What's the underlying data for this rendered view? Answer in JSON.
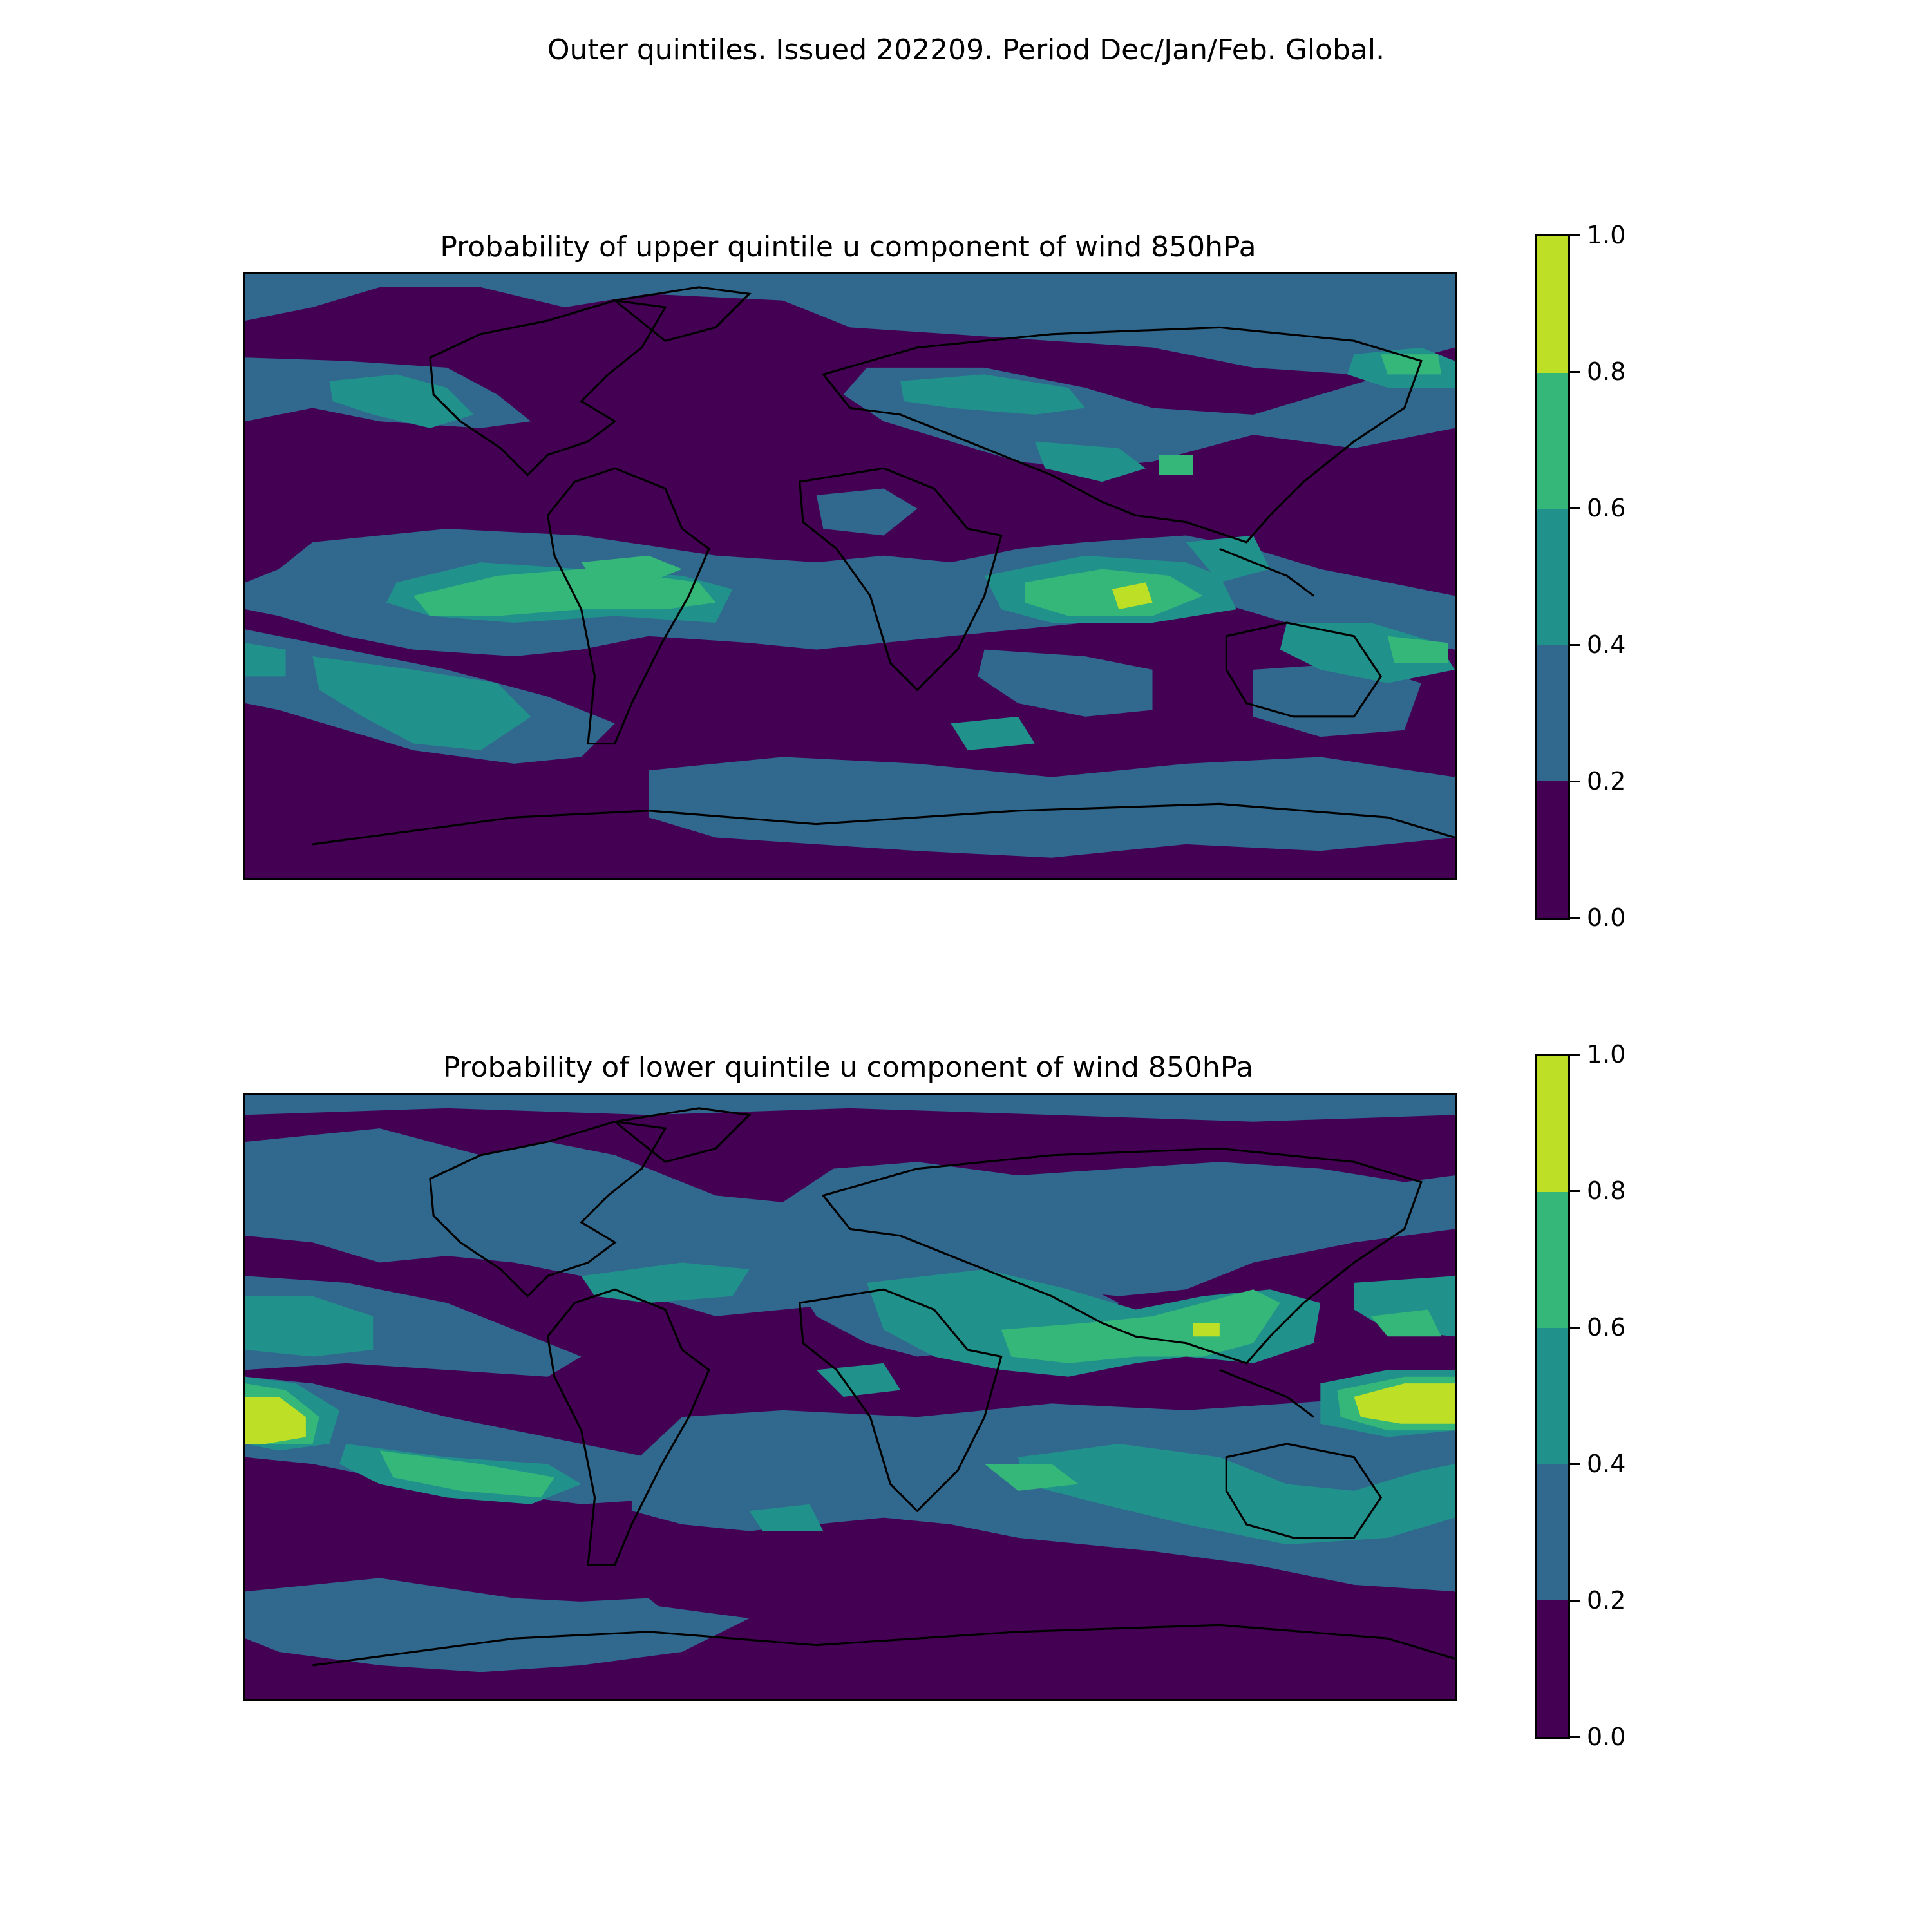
{
  "suptitle": "Outer quintiles. Issued 202209. Period Dec/Jan/Feb. Global.",
  "colors": {
    "levels": [
      "#440154",
      "#31688e",
      "#21918c",
      "#35b779",
      "#bddf26"
    ],
    "coastline": "#000000"
  },
  "colorbar": {
    "bounds": [
      0.0,
      0.2,
      0.4,
      0.6,
      0.8,
      1.0
    ],
    "tick_labels": [
      "0.0",
      "0.2",
      "0.4",
      "0.6",
      "0.8",
      "1.0"
    ]
  },
  "panels": [
    {
      "title": "Probability of upper quintile u component of wind 850hPa",
      "field": "probability of upper-quintile 850hPa zonal wind",
      "notable_regions": [
        {
          "region": "Indian Ocean near equator",
          "level": "0.8-1.0"
        },
        {
          "region": "Tropical Atlantic / northern South America",
          "level": "0.6-0.8"
        },
        {
          "region": "Eastern tropical Pacific",
          "level": "0.6-0.8"
        },
        {
          "region": "Northern Australia / Coral Sea",
          "level": "0.6-0.8"
        },
        {
          "region": "South Pacific mid-latitudes",
          "level": "0.4-0.6"
        },
        {
          "region": "North Pacific near Japan",
          "level": "0.6-0.8"
        }
      ]
    },
    {
      "title": "Probability of lower quintile u component of wind 850hPa",
      "field": "probability of lower-quintile 850hPa zonal wind",
      "notable_regions": [
        {
          "region": "Central equatorial Pacific (date line)",
          "level": "0.8-1.0"
        },
        {
          "region": "Western equatorial Pacific near New Guinea",
          "level": "0.8-1.0"
        },
        {
          "region": "South/Southeast Asia",
          "level": "0.6-0.8"
        },
        {
          "region": "Sahara / Arabia",
          "level": "0.4-0.6"
        },
        {
          "region": "Southern Indian Ocean",
          "level": "0.4-0.6"
        },
        {
          "region": "North Atlantic",
          "level": "0.4-0.6"
        }
      ]
    }
  ]
}
